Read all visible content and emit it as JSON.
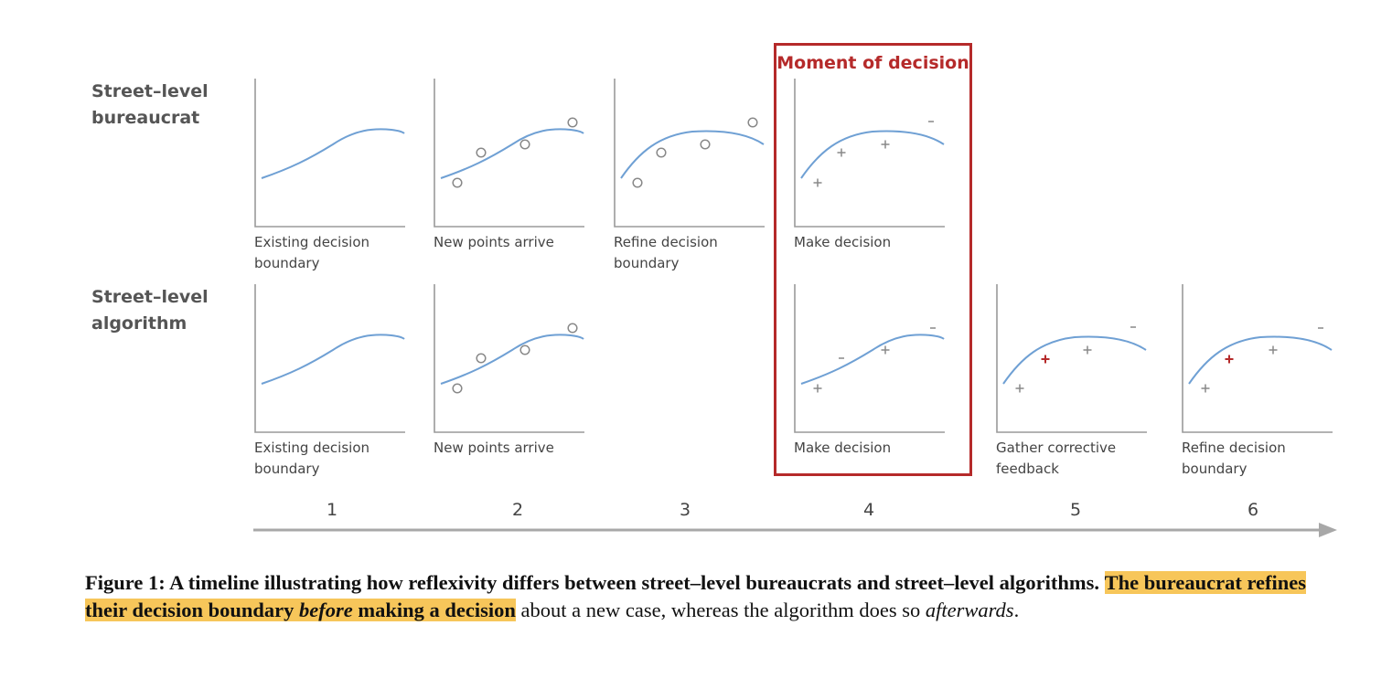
{
  "figure": {
    "row_labels": {
      "row1": [
        "Street–level",
        "bureaucrat"
      ],
      "row2": [
        "Street–level",
        "algorithm"
      ]
    },
    "highlight_title": "Moment of decision",
    "steps": [
      "1",
      "2",
      "3",
      "4",
      "5",
      "6"
    ],
    "accent_color": "#b52a2a",
    "curve_color": "#6fa0d4",
    "marker_color": "#888888",
    "panels_row1": [
      {
        "id": "r1p1",
        "caption": [
          "Existing decision",
          "boundary"
        ]
      },
      {
        "id": "r1p2",
        "caption": [
          "New points arrive"
        ]
      },
      {
        "id": "r1p3",
        "caption": [
          "Refine decision",
          "boundary"
        ]
      },
      {
        "id": "r1p4",
        "caption": [
          "Make decision"
        ]
      }
    ],
    "panels_row2": [
      {
        "id": "r2p1",
        "caption": [
          "Existing decision",
          "boundary"
        ]
      },
      {
        "id": "r2p2",
        "caption": [
          "New points arrive"
        ]
      },
      {
        "id": "r2p4",
        "caption": [
          "Make decision"
        ]
      },
      {
        "id": "r2p5",
        "caption": [
          "Gather corrective",
          "feedback"
        ]
      },
      {
        "id": "r2p6",
        "caption": [
          "Refine decision",
          "boundary"
        ]
      }
    ]
  },
  "caption": {
    "label": "Figure 1:",
    "text_bold": " A timeline illustrating how reflexivity differs between street–level bureaucrats and street–level algorithms.",
    "hl_part1": "The bureaucrat refines their decision boundary ",
    "hl_italic": "before",
    "hl_part2": " making a decision",
    "rest": " about a new case, whereas the algorithm does so ",
    "rest_italic": "afterwards",
    "end": "."
  }
}
